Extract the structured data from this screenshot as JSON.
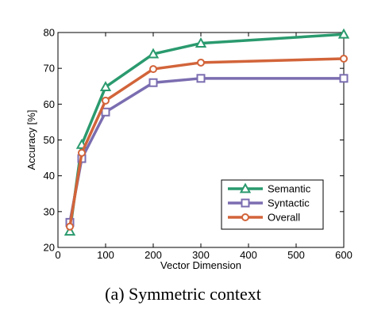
{
  "caption": "(a)  Symmetric context",
  "chart_data": {
    "type": "line",
    "xlabel": "Vector Dimension",
    "ylabel": "Accuracy [%]",
    "xlim": [
      0,
      600
    ],
    "ylim": [
      20,
      80
    ],
    "xticks": [
      0,
      100,
      200,
      300,
      400,
      500,
      600
    ],
    "yticks": [
      20,
      30,
      40,
      50,
      60,
      70,
      80
    ],
    "grid": false,
    "legend_position": "bottom-right",
    "x": [
      25,
      50,
      100,
      200,
      300,
      600
    ],
    "series": [
      {
        "name": "Semantic",
        "values": [
          24.5,
          48.7,
          64.8,
          74.0,
          77.0,
          79.5
        ],
        "color": "#2a9a6e",
        "marker": "triangle"
      },
      {
        "name": "Syntactic",
        "values": [
          27.0,
          44.8,
          57.8,
          66.0,
          67.2,
          67.2
        ],
        "color": "#7b6db0",
        "marker": "square"
      },
      {
        "name": "Overall",
        "values": [
          25.8,
          46.4,
          61.0,
          69.8,
          71.6,
          72.7
        ],
        "color": "#d2643a",
        "marker": "circle"
      }
    ]
  }
}
